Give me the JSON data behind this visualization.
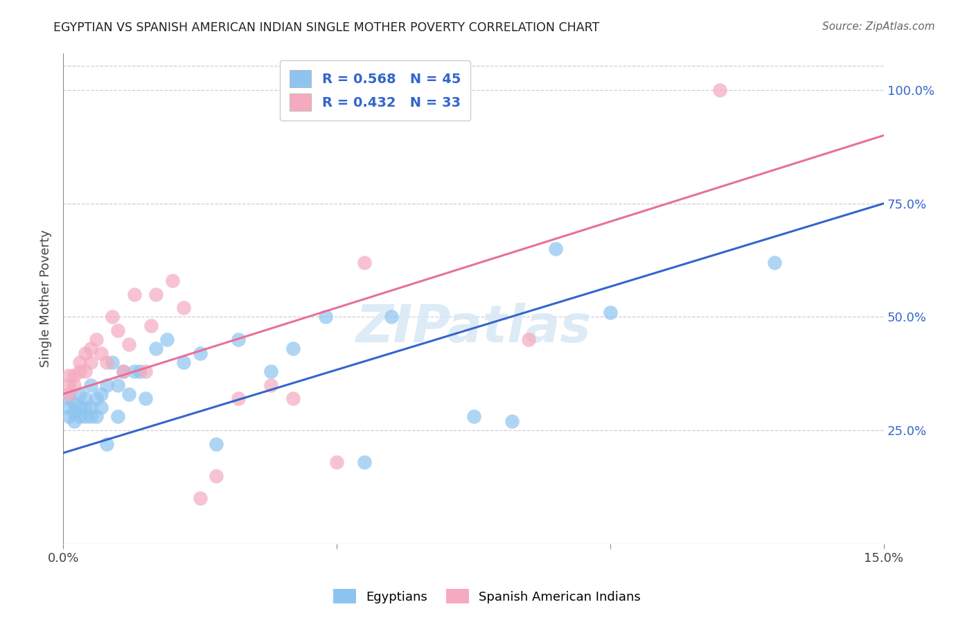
{
  "title": "EGYPTIAN VS SPANISH AMERICAN INDIAN SINGLE MOTHER POVERTY CORRELATION CHART",
  "source": "Source: ZipAtlas.com",
  "ylabel": "Single Mother Poverty",
  "xlim": [
    0.0,
    0.15
  ],
  "ylim": [
    0.0,
    1.08
  ],
  "ytick_labels": [
    "25.0%",
    "50.0%",
    "75.0%",
    "100.0%"
  ],
  "ytick_vals": [
    0.25,
    0.5,
    0.75,
    1.0
  ],
  "xtick_labels": [
    "0.0%",
    "",
    "",
    "15.0%"
  ],
  "xtick_vals": [
    0.0,
    0.05,
    0.1,
    0.15
  ],
  "blue_color": "#8EC4F0",
  "pink_color": "#F5AABF",
  "blue_line_color": "#3366CC",
  "pink_line_color": "#E87098",
  "legend_text_color": "#3366CC",
  "R_blue": 0.568,
  "N_blue": 45,
  "R_pink": 0.432,
  "N_pink": 33,
  "watermark": "ZIPatlas",
  "blue_line_y0": 0.2,
  "blue_line_y1": 0.75,
  "pink_line_y0": 0.33,
  "pink_line_y1": 0.9,
  "blue_x": [
    0.001,
    0.001,
    0.001,
    0.002,
    0.002,
    0.002,
    0.003,
    0.003,
    0.003,
    0.004,
    0.004,
    0.004,
    0.005,
    0.005,
    0.005,
    0.006,
    0.006,
    0.007,
    0.007,
    0.008,
    0.008,
    0.009,
    0.01,
    0.01,
    0.011,
    0.012,
    0.013,
    0.014,
    0.015,
    0.017,
    0.019,
    0.022,
    0.025,
    0.028,
    0.032,
    0.038,
    0.042,
    0.048,
    0.055,
    0.06,
    0.075,
    0.082,
    0.09,
    0.1,
    0.13
  ],
  "blue_y": [
    0.3,
    0.28,
    0.32,
    0.27,
    0.31,
    0.29,
    0.33,
    0.3,
    0.28,
    0.32,
    0.28,
    0.3,
    0.35,
    0.28,
    0.3,
    0.32,
    0.28,
    0.33,
    0.3,
    0.35,
    0.22,
    0.4,
    0.35,
    0.28,
    0.38,
    0.33,
    0.38,
    0.38,
    0.32,
    0.43,
    0.45,
    0.4,
    0.42,
    0.22,
    0.45,
    0.38,
    0.43,
    0.5,
    0.18,
    0.5,
    0.28,
    0.27,
    0.65,
    0.51,
    0.62
  ],
  "pink_x": [
    0.001,
    0.001,
    0.001,
    0.002,
    0.002,
    0.003,
    0.003,
    0.004,
    0.004,
    0.005,
    0.005,
    0.006,
    0.007,
    0.008,
    0.009,
    0.01,
    0.011,
    0.012,
    0.013,
    0.015,
    0.016,
    0.017,
    0.02,
    0.022,
    0.025,
    0.028,
    0.032,
    0.038,
    0.042,
    0.05,
    0.055,
    0.085,
    0.12
  ],
  "pink_y": [
    0.35,
    0.33,
    0.37,
    0.35,
    0.37,
    0.38,
    0.4,
    0.42,
    0.38,
    0.4,
    0.43,
    0.45,
    0.42,
    0.4,
    0.5,
    0.47,
    0.38,
    0.44,
    0.55,
    0.38,
    0.48,
    0.55,
    0.58,
    0.52,
    0.1,
    0.15,
    0.32,
    0.35,
    0.32,
    0.18,
    0.62,
    0.45,
    1.0
  ]
}
